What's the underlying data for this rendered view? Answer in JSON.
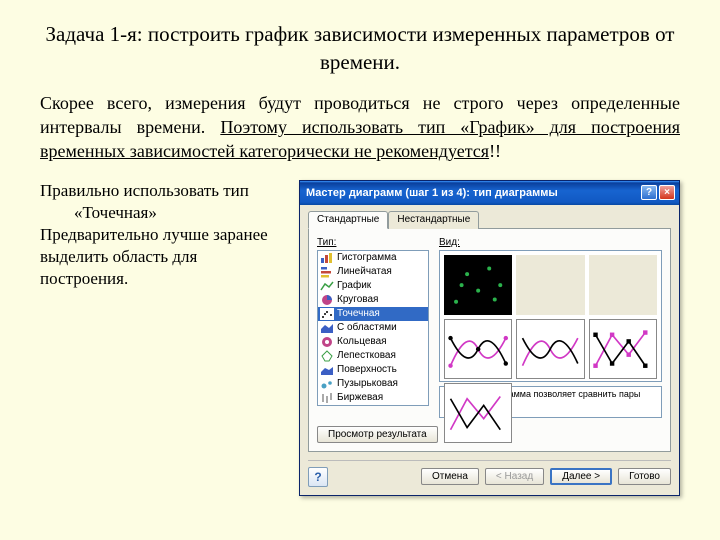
{
  "slide": {
    "title": "Задача 1-я: построить график зависимости измеренных параметров от времени.",
    "paragraph_lead": "Скорее всего, измерения будут проводиться не строго через определенные интервалы времени. ",
    "paragraph_underlined": "Поэтому использовать тип «График» для построения временных зависимостей категорически не рекомендуется",
    "paragraph_tail": "!!",
    "lower_text_1": "Правильно использовать тип «Точечная»",
    "lower_text_2": "Предварительно лучше заранее выделить область для построения."
  },
  "dialog": {
    "title": "Мастер диаграмм (шаг 1 из 4): тип диаграммы",
    "tabs": [
      "Стандартные",
      "Нестандартные"
    ],
    "active_tab": 0,
    "type_label": "Тип:",
    "view_label": "Вид:",
    "types": [
      {
        "label": "Гистограмма",
        "icon_bg": "#3b5fc4",
        "icon": "bar"
      },
      {
        "label": "Линейчатая",
        "icon_bg": "#c44a3b",
        "icon": "hbar"
      },
      {
        "label": "График",
        "icon_bg": "#3b9f46",
        "icon": "line"
      },
      {
        "label": "Круговая",
        "icon_bg": "#c04488",
        "icon": "pie"
      },
      {
        "label": "Точечная",
        "icon_bg": "#000",
        "icon": "scatter",
        "selected": true
      },
      {
        "label": "С областями",
        "icon_bg": "#3b5fc4",
        "icon": "area"
      },
      {
        "label": "Кольцевая",
        "icon_bg": "#c04488",
        "icon": "donut"
      },
      {
        "label": "Лепестковая",
        "icon_bg": "#3b9f46",
        "icon": "radar"
      },
      {
        "label": "Поверхность",
        "icon_bg": "#3b5fc4",
        "icon": "surf"
      },
      {
        "label": "Пузырьковая",
        "icon_bg": "#4aa0c4",
        "icon": "bubble"
      },
      {
        "label": "Биржевая",
        "icon_bg": "#555",
        "icon": "stock"
      }
    ],
    "description": "Точечная диаграмма позволяет сравнить пары значений.",
    "preview_button": "Просмотр результата",
    "footer_buttons": {
      "cancel": "Отмена",
      "back": "< Назад",
      "next": "Далее >",
      "finish": "Готово"
    },
    "colors": {
      "magenta": "#d138c5",
      "green": "#2bb24c",
      "black": "#000"
    }
  }
}
